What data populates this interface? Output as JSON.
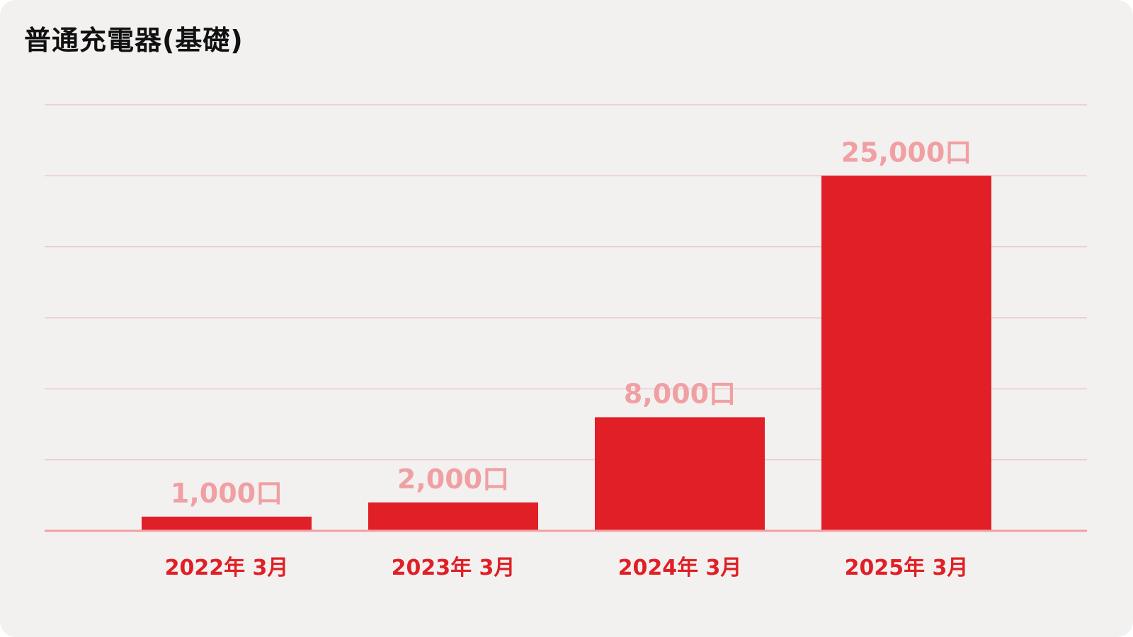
{
  "title": "普通充電器(基礎)",
  "colors": {
    "background": "#f3f1f0",
    "bar": "#e01f26",
    "value_label": "#f0a0a3",
    "tick_label": "#e01f26",
    "grid": "#e8c9cb",
    "baseline": "#f0a0a3"
  },
  "chart_data": {
    "type": "bar",
    "title": "普通充電器(基礎)",
    "xlabel": "",
    "ylabel": "",
    "categories": [
      "2022年 3月",
      "2023年 3月",
      "2024年 3月",
      "2025年 3月"
    ],
    "values": [
      1000,
      2000,
      8000,
      25000
    ],
    "value_labels": [
      "1,000口",
      "2,000口",
      "8,000口",
      "25,000口"
    ],
    "ylim": [
      0,
      30000
    ],
    "grid": true,
    "legend": "none"
  }
}
